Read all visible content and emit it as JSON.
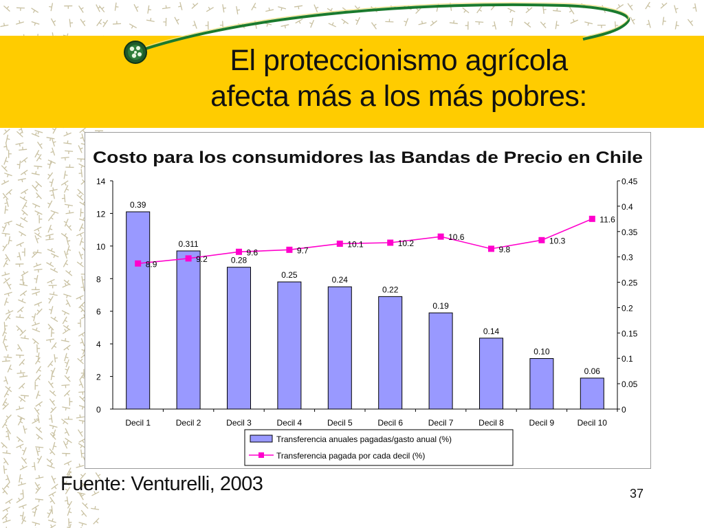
{
  "slide": {
    "title_line1": "El proteccionismo agrícola",
    "title_line2": "afecta más a los más pobres:",
    "source": "Fuente: Venturelli, 2003",
    "page_number": "37",
    "colors": {
      "band": "#ffcc00",
      "pattern": "#c8c0a0",
      "swoosh": "#1a7a2e"
    }
  },
  "chart_data": {
    "type": "bar",
    "title": "Costo para los consumidores las Bandas de Precio en Chile",
    "categories": [
      "Decil 1",
      "Decil 2",
      "Decil 3",
      "Decil 4",
      "Decil 5",
      "Decil 6",
      "Decil 7",
      "Decil 8",
      "Decil 9",
      "Decil 10"
    ],
    "y_left": {
      "min": 0,
      "max": 14,
      "ticks": [
        "0",
        "2",
        "4",
        "6",
        "8",
        "10",
        "12",
        "14"
      ]
    },
    "y_right": {
      "min": 0,
      "max": 0.45,
      "ticks": [
        "0",
        "0.05",
        "0.1",
        "0.15",
        "0.2",
        "0.25",
        "0.3",
        "0.35",
        "0.4",
        "0.45"
      ]
    },
    "series": [
      {
        "name": "Transferencia anuales pagadas/gasto anual (%)",
        "kind": "bar",
        "axis": "left",
        "color": "#9999ff",
        "values": [
          12.1,
          9.7,
          8.7,
          7.8,
          7.5,
          6.9,
          5.9,
          4.35,
          3.1,
          1.9
        ],
        "labels": [
          "0.39",
          "0.311",
          "0.28",
          "0.25",
          "0.24",
          "0.22",
          "0.19",
          "0.14",
          "0.10",
          "0.06"
        ]
      },
      {
        "name": "Transferencia pagada por cada decil (%)",
        "kind": "line",
        "axis": "right",
        "color": "#ff00cc",
        "values": [
          0.287,
          0.297,
          0.31,
          0.314,
          0.326,
          0.328,
          0.34,
          0.316,
          0.333,
          0.375
        ],
        "labels": [
          "8.9",
          "9.2",
          "9.6",
          "9.7",
          "10.1",
          "10.2",
          "10.6",
          "9.8",
          "10.3",
          "11.6"
        ]
      }
    ]
  }
}
